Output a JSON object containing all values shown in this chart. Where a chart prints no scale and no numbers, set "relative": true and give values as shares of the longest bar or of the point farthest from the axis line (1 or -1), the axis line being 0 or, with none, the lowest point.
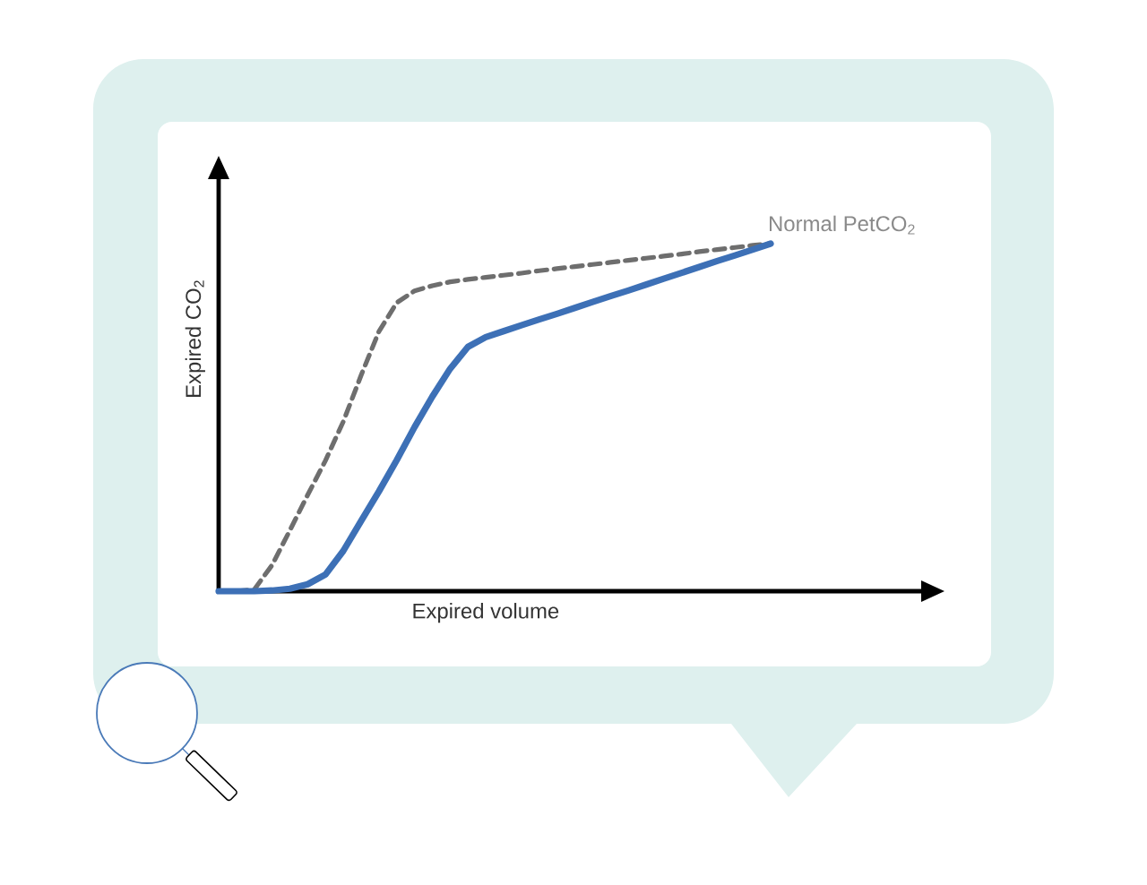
{
  "chart_data": {
    "type": "line",
    "xlabel": "Expired volume",
    "ylabel": "Expired CO$_{2}$",
    "annotations": [
      "Normal PetCO$_{2}$"
    ],
    "relative": true,
    "categories": [
      null,
      null,
      null,
      null,
      null,
      null,
      null,
      null,
      null,
      null,
      null,
      null,
      null,
      null,
      null,
      null,
      null,
      null,
      null,
      null,
      null,
      null,
      null,
      null,
      null,
      null,
      null,
      null,
      null,
      null,
      null,
      null
    ],
    "series": [
      {
        "color": "#6e6e6e",
        "line_style": "dashed",
        "values": [
          0,
          0,
          0.005,
          0.075,
          0.175,
          0.277,
          0.376,
          0.488,
          0.621,
          0.747,
          0.83,
          0.864,
          0.879,
          0.89,
          0.897,
          0.903,
          0.909,
          0.915,
          0.922,
          0.928,
          0.934,
          0.94,
          0.946,
          0.952,
          0.958,
          0.964,
          0.97,
          0.977,
          0.983,
          0.989,
          0.995,
          1.0
        ]
      },
      {
        "color": "#3d70b6",
        "line_style": "solid",
        "values": [
          0,
          0,
          0,
          0.002,
          0.007,
          0.02,
          0.048,
          0.116,
          0.202,
          0.287,
          0.377,
          0.472,
          0.56,
          0.64,
          0.703,
          0.731,
          0.748,
          0.765,
          0.782,
          0.798,
          0.815,
          0.832,
          0.849,
          0.865,
          0.882,
          0.899,
          0.916,
          0.933,
          0.95,
          0.966,
          0.983,
          1.0
        ]
      }
    ]
  }
}
